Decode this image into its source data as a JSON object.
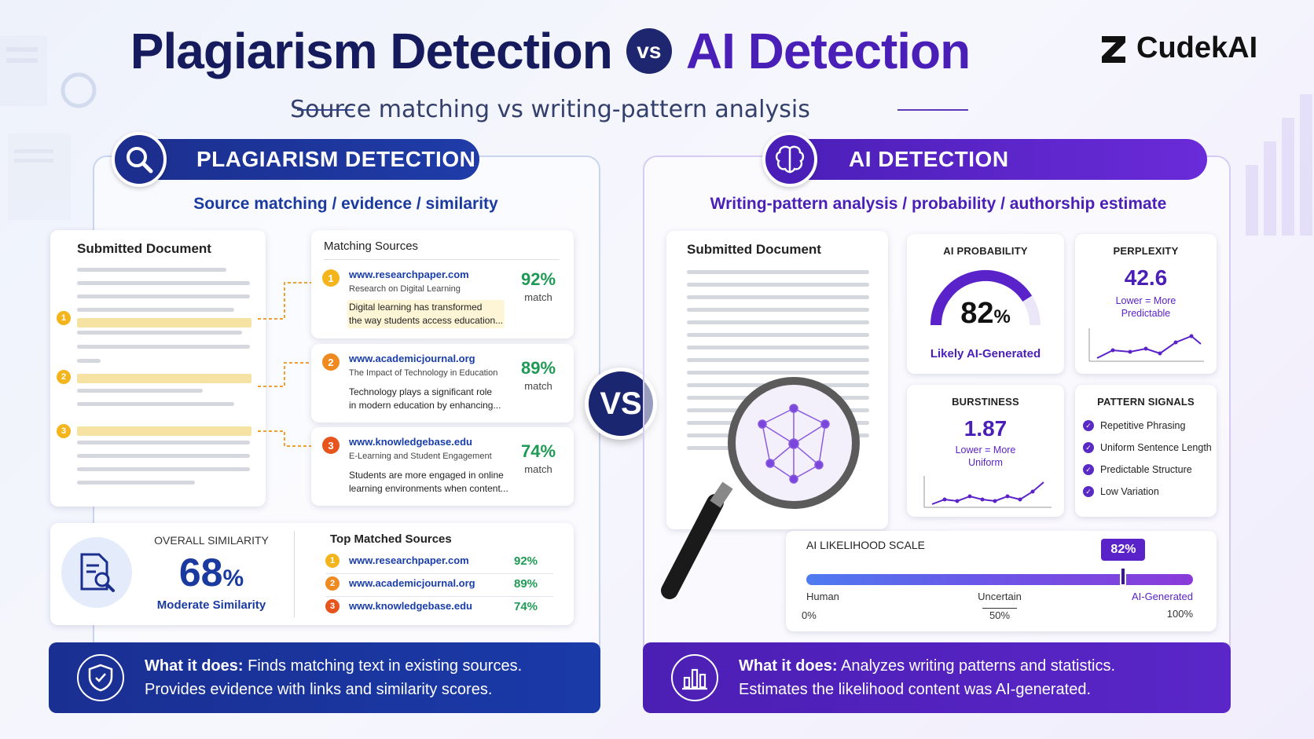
{
  "header": {
    "title_left": "Plagiarism Detection",
    "vs": "vs",
    "title_right": "AI Detection",
    "subtitle": "Source matching vs writing-pattern analysis",
    "brand": "CudekAI"
  },
  "center_vs": "VS",
  "plagiarism": {
    "heading": "PLAGIARISM DETECTION",
    "tagline": "Source matching / evidence / similarity",
    "doc_title": "Submitted Document",
    "markers": [
      "1",
      "2",
      "3"
    ],
    "sources_title": "Matching Sources",
    "sources": [
      {
        "num": "1",
        "url": "www.researchpaper.com",
        "sub": "Research on Digital Learning",
        "text1": "Digital learning has transformed",
        "text2": "the way students access education...",
        "pct": "92%",
        "label": "match"
      },
      {
        "num": "2",
        "url": "www.academicjournal.org",
        "sub": "The Impact of Technology in Education",
        "text1": "Technology plays a significant role",
        "text2": "in modern education by enhancing...",
        "pct": "89%",
        "label": "match"
      },
      {
        "num": "3",
        "url": "www.knowledgebase.edu",
        "sub": "E-Learning and Student Engagement",
        "text1": "Students are more engaged in online",
        "text2": "learning environments when content...",
        "pct": "74%",
        "label": "match"
      }
    ],
    "overall_label": "OVERALL SIMILARITY",
    "overall_value": "68",
    "overall_unit": "%",
    "overall_desc": "Moderate Similarity",
    "top_title": "Top Matched Sources",
    "top_sources": [
      {
        "num": "1",
        "url": "www.researchpaper.com",
        "pct": "92%"
      },
      {
        "num": "2",
        "url": "www.academicjournal.org",
        "pct": "89%"
      },
      {
        "num": "3",
        "url": "www.knowledgebase.edu",
        "pct": "74%"
      }
    ],
    "what_bold": "What it does:",
    "what_line1": " Finds matching text in existing sources.",
    "what_line2": "Provides evidence with links and similarity scores."
  },
  "ai": {
    "heading": "AI DETECTION",
    "tagline": "Writing-pattern analysis / probability / authorship estimate",
    "doc_title": "Submitted Document",
    "prob_title": "AI PROBABILITY",
    "prob_value": "82",
    "prob_unit": "%",
    "prob_fraction": 0.82,
    "prob_desc": "Likely AI-Generated",
    "perp_title": "PERPLEXITY",
    "perp_value": "42.6",
    "perp_desc1": "Lower = More",
    "perp_desc2": "Predictable",
    "burst_title": "BURSTINESS",
    "burst_value": "1.87",
    "burst_desc1": "Lower = More",
    "burst_desc2": "Uniform",
    "signals_title": "PATTERN SIGNALS",
    "signals": [
      "Repetitive Phrasing",
      "Uniform Sentence Length",
      "Predictable Structure",
      "Low Variation"
    ],
    "scale_title": "AI LIKELIHOOD SCALE",
    "scale_marker": "82%",
    "scale_fraction": 0.82,
    "scale_labels": [
      "Human",
      "Uncertain",
      "AI-Generated"
    ],
    "scale_ticks": [
      "0%",
      "50%",
      "100%"
    ],
    "what_bold": "What it does:",
    "what_line1": " Analyzes writing patterns and statistics.",
    "what_line2": "Estimates the likelihood content was AI-generated."
  },
  "colors": {
    "navy": "#1b2a86",
    "purple": "#5a22c9",
    "green": "#1f9a55"
  }
}
